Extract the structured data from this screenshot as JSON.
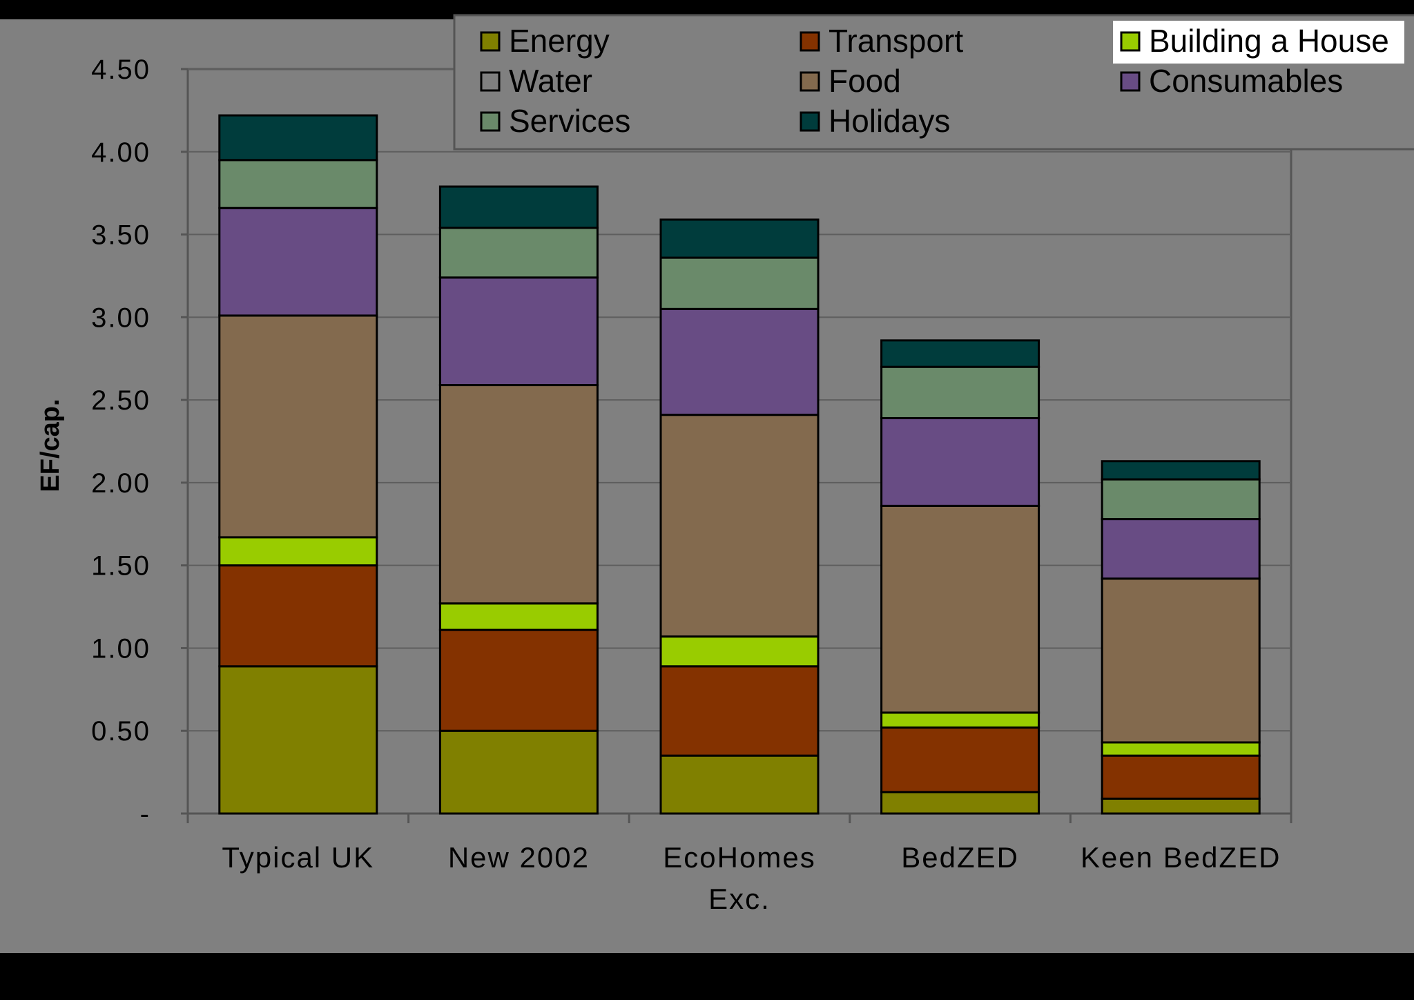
{
  "chart_data": {
    "type": "bar",
    "stacked": true,
    "title": "",
    "xlabel": "",
    "ylabel": "EF/cap.",
    "ylim": [
      0,
      4.5
    ],
    "yticks": [
      {
        "value": 0,
        "label": "-"
      },
      {
        "value": 0.5,
        "label": "0.50"
      },
      {
        "value": 1.0,
        "label": "1.00"
      },
      {
        "value": 1.5,
        "label": "1.50"
      },
      {
        "value": 2.0,
        "label": "2.00"
      },
      {
        "value": 2.5,
        "label": "2.50"
      },
      {
        "value": 3.0,
        "label": "3.00"
      },
      {
        "value": 3.5,
        "label": "3.50"
      },
      {
        "value": 4.0,
        "label": "4.00"
      },
      {
        "value": 4.5,
        "label": "4.50"
      }
    ],
    "grid": true,
    "legend_position": "top",
    "categories": [
      [
        "Typical UK"
      ],
      [
        "New 2002"
      ],
      [
        "EcoHomes",
        "Exc."
      ],
      [
        "BedZED"
      ],
      [
        "Keen BedZED"
      ]
    ],
    "series": [
      {
        "name": "Energy",
        "color": "#808000",
        "values": [
          0.89,
          0.5,
          0.35,
          0.13,
          0.09
        ]
      },
      {
        "name": "Water",
        "color": "#808080",
        "values": [
          0.0,
          0.0,
          0.0,
          0.0,
          0.0
        ]
      },
      {
        "name": "Services",
        "color": "#6a8a6a",
        "values": [
          0.29,
          0.3,
          0.31,
          0.31,
          0.24
        ]
      },
      {
        "name": "Transport",
        "color": "#843200",
        "values": [
          0.61,
          0.61,
          0.54,
          0.39,
          0.26
        ]
      },
      {
        "name": "Food",
        "color": "#836a4e",
        "values": [
          1.34,
          1.32,
          1.34,
          1.25,
          0.99
        ]
      },
      {
        "name": "Holidays",
        "color": "#003c3c",
        "values": [
          0.27,
          0.25,
          0.23,
          0.16,
          0.11
        ]
      },
      {
        "name": "Building a House",
        "color": "#99cc00",
        "values": [
          0.17,
          0.16,
          0.18,
          0.09,
          0.08
        ]
      },
      {
        "name": "Consumables",
        "color": "#684c84",
        "values": [
          0.65,
          0.65,
          0.64,
          0.53,
          0.36
        ]
      }
    ],
    "stack_order": [
      "Energy",
      "Transport",
      "Building a House",
      "Water",
      "Food",
      "Consumables",
      "Services",
      "Holidays"
    ],
    "highlighted_legend_entry": "Building a House"
  }
}
